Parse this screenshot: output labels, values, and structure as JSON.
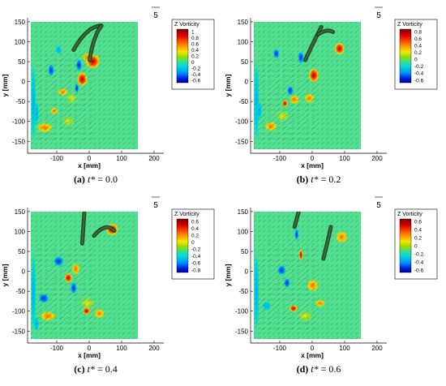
{
  "chart_data": [
    {
      "type": "heatmap",
      "caption": {
        "letter": "(a)",
        "tvar": "t*",
        "rest": " = 0.0"
      },
      "xlabel": "x [mm]",
      "ylabel": "y [mm]",
      "xticks": [
        -100,
        0,
        100,
        200
      ],
      "yticks": [
        -150,
        -100,
        -50,
        0,
        50,
        100,
        150
      ],
      "xlim": [
        -190,
        230
      ],
      "ylim": [
        -180,
        160
      ],
      "reference_vector_label": "5",
      "colorbar": {
        "title": "Z Vorticity",
        "ticks": [
          "1",
          "0.8",
          "0.6",
          "0.4",
          "0.2",
          "0",
          "-0.2",
          "-0.4",
          "-0.6"
        ]
      }
    },
    {
      "type": "heatmap",
      "caption": {
        "letter": "(b)",
        "tvar": "t*",
        "rest": " = 0.2"
      },
      "xlabel": "x [mm]",
      "ylabel": "y [mm]",
      "xticks": [
        -100,
        0,
        100,
        200
      ],
      "yticks": [
        -150,
        -100,
        -50,
        0,
        50,
        100,
        150
      ],
      "xlim": [
        -190,
        230
      ],
      "ylim": [
        -180,
        160
      ],
      "reference_vector_label": "5",
      "colorbar": {
        "title": "Z Vorticity",
        "ticks": [
          "0.8",
          "0.6",
          "0.4",
          "0.2",
          "0",
          "-0.2",
          "-0.4",
          "-0.6"
        ]
      }
    },
    {
      "type": "heatmap",
      "caption": {
        "letter": "(c)",
        "tvar": "t*",
        "rest": " = 0.4"
      },
      "xlabel": "x [mm]",
      "ylabel": "y [mm]",
      "xticks": [
        -100,
        0,
        100,
        200
      ],
      "yticks": [
        -150,
        -100,
        -50,
        0,
        50,
        100,
        150
      ],
      "xlim": [
        -190,
        230
      ],
      "ylim": [
        -180,
        160
      ],
      "reference_vector_label": "5",
      "colorbar": {
        "title": "Z Vorticity",
        "ticks": [
          "0.6",
          "0.4",
          "0.2",
          "0",
          "-0.2",
          "-0.4",
          "-0.6",
          "-0.8"
        ]
      }
    },
    {
      "type": "heatmap",
      "caption": {
        "letter": "(d)",
        "tvar": "t*",
        "rest": " = 0.6"
      },
      "xlabel": "x [mm]",
      "ylabel": "y [mm]",
      "xticks": [
        -100,
        0,
        100,
        200
      ],
      "yticks": [
        -150,
        -100,
        -50,
        0,
        50,
        100,
        150
      ],
      "xlim": [
        -190,
        230
      ],
      "ylim": [
        -180,
        160
      ],
      "reference_vector_label": "5",
      "colorbar": {
        "title": "Z Vorticity",
        "ticks": [
          "0.6",
          "0.4",
          "0.2",
          "0",
          "-0.2",
          "-0.4",
          "-0.6"
        ]
      }
    }
  ]
}
